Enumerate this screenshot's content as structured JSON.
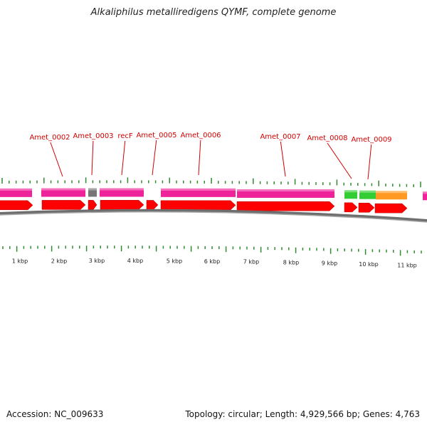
{
  "title": "Alkaliphilus metalliredigens QYMF, complete genome",
  "footer": {
    "accession_text": "Accession: NC_009633",
    "summary_text": "Topology: circular; Length: 4,929,566 bp; Genes: 4,763"
  },
  "genome_view": {
    "colors": {
      "cds": "#ff0000",
      "pink": "#ee2299",
      "gray": "#777777",
      "green": "#33cc33",
      "orange": "#ff9922",
      "label": "#d10000",
      "tick": "#2e8b2e",
      "backbone": "#8a8a8a"
    },
    "kbp_labels": [
      "1 kbp",
      "2 kbp",
      "3 kbp",
      "4 kbp",
      "5 kbp",
      "6 kbp",
      "7 kbp",
      "8 kbp",
      "9 kbp",
      "10 kbp",
      "11 kbp"
    ],
    "gene_labels": [
      "Amet_0002",
      "Amet_0003",
      "recF",
      "Amet_0005",
      "Amet_0006",
      "Amet_0007",
      "Amet_0008",
      "Amet_0009"
    ]
  }
}
